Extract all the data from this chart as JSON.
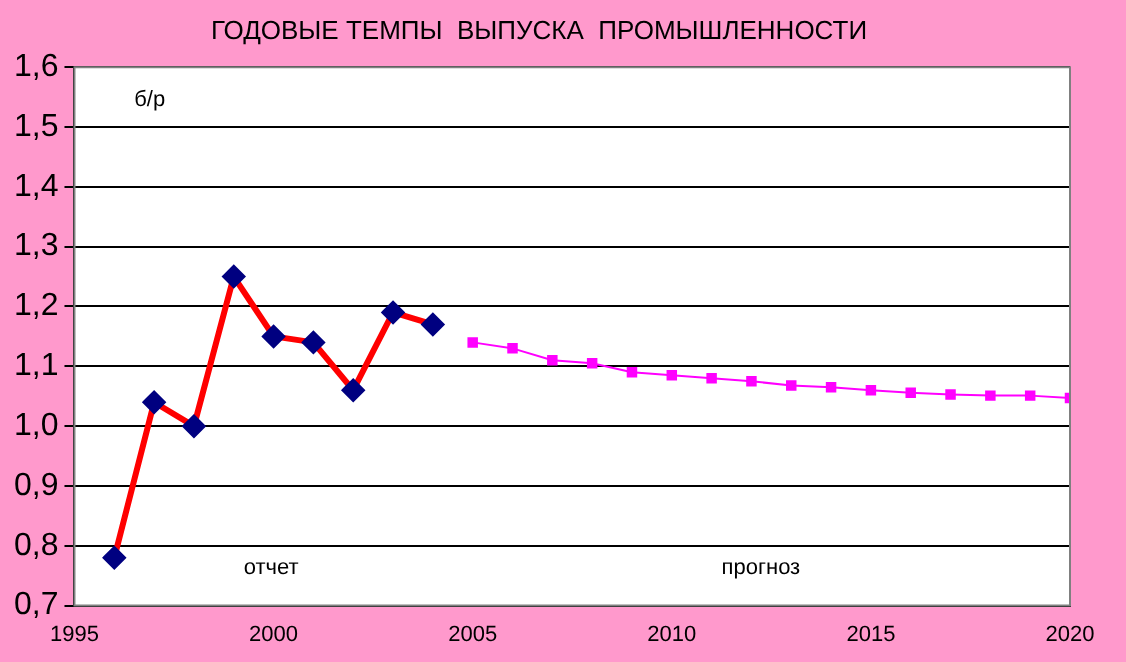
{
  "chart_data": {
    "type": "line",
    "title": "ГОДОВЫЕ ТЕМПЫ  ВЫПУСКА  ПРОМЫШЛЕННОСТИ",
    "annotations": [
      "б/р",
      "отчет",
      "прогноз"
    ],
    "series": [
      {
        "color": "#ff0000",
        "marker": "diamond",
        "x": [
          1996,
          1997,
          1998,
          1999,
          2000,
          2001,
          2002,
          2003,
          2004
        ],
        "values": [
          0.78,
          1.04,
          1.0,
          1.25,
          1.15,
          1.14,
          1.06,
          1.19,
          1.17
        ]
      },
      {
        "color": "#ff00ff",
        "marker": "square",
        "x": [
          2005,
          2006,
          2007,
          2008,
          2009,
          2010,
          2011,
          2012,
          2013,
          2014,
          2015,
          2016,
          2017,
          2018,
          2019,
          2020
        ],
        "values": [
          1.14,
          1.13,
          1.11,
          1.105,
          1.09,
          1.085,
          1.08,
          1.075,
          1.068,
          1.065,
          1.06,
          1.056,
          1.053,
          1.051,
          1.051,
          1.047
        ]
      }
    ],
    "xlim": [
      1995,
      2020
    ],
    "xticks": [
      1995,
      2000,
      2005,
      2010,
      2015,
      2020
    ],
    "ylim": [
      0.7,
      1.6
    ],
    "yticks": [
      {
        "value": 0.7,
        "label": "0,7"
      },
      {
        "value": 0.8,
        "label": "0,8"
      },
      {
        "value": 0.9,
        "label": "0,9"
      },
      {
        "value": 1.0,
        "label": "1,0"
      },
      {
        "value": 1.1,
        "label": "1,1"
      },
      {
        "value": 1.2,
        "label": "1,2"
      },
      {
        "value": 1.3,
        "label": "1,3"
      },
      {
        "value": 1.4,
        "label": "1,4"
      },
      {
        "value": 1.5,
        "label": "1,5"
      },
      {
        "value": 1.6,
        "label": "1,6"
      }
    ],
    "grid": "y",
    "legend": false
  }
}
